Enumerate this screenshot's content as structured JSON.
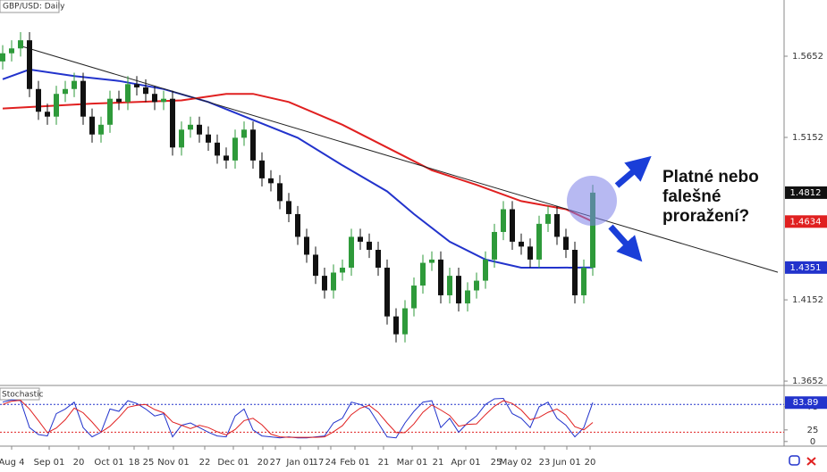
{
  "chart_data": [
    {
      "type": "candlestick",
      "title": "GBP/USD: Daily",
      "xlim": [
        -0.3,
        87.2
      ],
      "xticks": [
        {
          "value": 1,
          "label": "Aug 4"
        },
        {
          "value": 5.2,
          "label": "Sep 01"
        },
        {
          "value": 8.5,
          "label": "20"
        },
        {
          "value": 11.9,
          "label": "Oct 01"
        },
        {
          "value": 14.7,
          "label": "18"
        },
        {
          "value": 16.3,
          "label": "25"
        },
        {
          "value": 19.1,
          "label": "Nov 01"
        },
        {
          "value": 22.6,
          "label": "22"
        },
        {
          "value": 25.8,
          "label": "Dec 01"
        },
        {
          "value": 29.1,
          "label": "20"
        },
        {
          "value": 30.5,
          "label": "27"
        },
        {
          "value": 33.3,
          "label": "Jan 01"
        },
        {
          "value": 35.3,
          "label": "17"
        },
        {
          "value": 36.7,
          "label": "24"
        },
        {
          "value": 39.4,
          "label": "Feb 01"
        },
        {
          "value": 42.6,
          "label": "21"
        },
        {
          "value": 45.8,
          "label": "Mar 01"
        },
        {
          "value": 48.7,
          "label": "21"
        },
        {
          "value": 51.8,
          "label": "Apr 01"
        },
        {
          "value": 55.2,
          "label": "25"
        },
        {
          "value": 57.4,
          "label": "May 02"
        },
        {
          "value": 60.6,
          "label": "23"
        },
        {
          "value": 63.1,
          "label": "Jun 01"
        },
        {
          "value": 65.7,
          "label": "20"
        }
      ],
      "ylim": [
        1.3636,
        1.5998
      ],
      "yticks": [
        1.3652,
        1.4152,
        1.5152,
        1.5652
      ],
      "up_color": "#2e9a3a",
      "down_color": "#111111",
      "open": [
        1.562,
        1.567,
        1.57,
        1.575,
        1.545,
        1.531,
        1.528,
        1.542,
        1.545,
        1.55,
        1.528,
        1.517,
        1.523,
        1.539,
        1.537,
        1.548,
        1.546,
        1.542,
        1.537,
        1.539,
        1.509,
        1.52,
        1.523,
        1.517,
        1.512,
        1.504,
        1.501,
        1.515,
        1.52,
        1.501,
        1.49,
        1.487,
        1.476,
        1.468,
        1.454,
        1.443,
        1.43,
        1.421,
        1.432,
        1.435,
        1.454,
        1.451,
        1.446,
        1.435,
        1.405,
        1.394,
        1.41,
        1.424,
        1.438,
        1.44,
        1.418,
        1.43,
        1.413,
        1.421,
        1.427,
        1.44,
        1.457,
        1.471,
        1.451,
        1.448,
        1.44,
        1.462,
        1.468,
        1.454,
        1.446,
        1.418,
        1.435
      ],
      "high": [
        1.572,
        1.575,
        1.58,
        1.58,
        1.55,
        1.536,
        1.547,
        1.55,
        1.555,
        1.555,
        1.533,
        1.528,
        1.544,
        1.544,
        1.553,
        1.553,
        1.551,
        1.547,
        1.544,
        1.544,
        1.525,
        1.528,
        1.528,
        1.522,
        1.517,
        1.509,
        1.52,
        1.525,
        1.525,
        1.506,
        1.495,
        1.492,
        1.481,
        1.473,
        1.459,
        1.448,
        1.435,
        1.437,
        1.44,
        1.459,
        1.459,
        1.456,
        1.451,
        1.44,
        1.41,
        1.415,
        1.429,
        1.443,
        1.445,
        1.445,
        1.435,
        1.435,
        1.426,
        1.432,
        1.445,
        1.462,
        1.476,
        1.476,
        1.456,
        1.453,
        1.467,
        1.473,
        1.473,
        1.459,
        1.451,
        1.44,
        1.486
      ],
      "low": [
        1.557,
        1.562,
        1.565,
        1.54,
        1.526,
        1.523,
        1.523,
        1.537,
        1.54,
        1.523,
        1.512,
        1.512,
        1.518,
        1.532,
        1.532,
        1.541,
        1.537,
        1.532,
        1.532,
        1.504,
        1.504,
        1.515,
        1.512,
        1.507,
        1.499,
        1.496,
        1.496,
        1.51,
        1.496,
        1.485,
        1.482,
        1.471,
        1.463,
        1.449,
        1.438,
        1.425,
        1.416,
        1.416,
        1.427,
        1.43,
        1.446,
        1.441,
        1.43,
        1.4,
        1.389,
        1.389,
        1.405,
        1.419,
        1.433,
        1.413,
        1.413,
        1.408,
        1.408,
        1.416,
        1.422,
        1.435,
        1.452,
        1.446,
        1.443,
        1.435,
        1.435,
        1.457,
        1.449,
        1.441,
        1.413,
        1.413,
        1.43
      ],
      "close": [
        1.567,
        1.57,
        1.575,
        1.545,
        1.531,
        1.528,
        1.542,
        1.545,
        1.55,
        1.528,
        1.517,
        1.523,
        1.539,
        1.537,
        1.548,
        1.546,
        1.542,
        1.537,
        1.539,
        1.509,
        1.52,
        1.523,
        1.517,
        1.512,
        1.504,
        1.501,
        1.515,
        1.52,
        1.501,
        1.49,
        1.487,
        1.476,
        1.468,
        1.454,
        1.443,
        1.43,
        1.421,
        1.432,
        1.435,
        1.454,
        1.451,
        1.446,
        1.435,
        1.405,
        1.394,
        1.41,
        1.424,
        1.438,
        1.44,
        1.418,
        1.43,
        1.413,
        1.421,
        1.427,
        1.44,
        1.457,
        1.471,
        1.451,
        1.448,
        1.44,
        1.462,
        1.468,
        1.454,
        1.446,
        1.418,
        1.435,
        1.4812
      ],
      "lines": [
        {
          "color": "#2233cc",
          "x": [
            0,
            3,
            8,
            13,
            18,
            23,
            28,
            33,
            38,
            43,
            46,
            50,
            54,
            58,
            62,
            66
          ],
          "values": [
            1.551,
            1.557,
            1.553,
            1.55,
            1.545,
            1.537,
            1.526,
            1.515,
            1.498,
            1.482,
            1.468,
            1.451,
            1.44,
            1.435,
            1.435,
            1.4351
          ]
        },
        {
          "color": "#e02020",
          "x": [
            0,
            10,
            20,
            25,
            28,
            32,
            38,
            43,
            48,
            53,
            58,
            63,
            66
          ],
          "values": [
            1.533,
            1.536,
            1.538,
            1.542,
            1.542,
            1.537,
            1.523,
            1.509,
            1.495,
            1.486,
            1.476,
            1.471,
            1.4634
          ]
        }
      ],
      "trendline": {
        "color": "#222222",
        "x": [
          2.2,
          86.7
        ],
        "values": [
          1.5712,
          1.4322
        ]
      },
      "annotation": [
        "Platné nebo",
        "falešné",
        "proražení?"
      ]
    },
    {
      "type": "line",
      "title": "Stochastic",
      "xlim": [
        -0.3,
        87.2
      ],
      "ylim": [
        -10,
        119
      ],
      "yticks": [
        0,
        25,
        75
      ],
      "levels": [
        {
          "value": 80,
          "color": "#2233cc"
        },
        {
          "value": 20,
          "color": "#e02020"
        }
      ],
      "series": [
        {
          "color": "#2233cc",
          "values": [
            85,
            90,
            88,
            30,
            15,
            12,
            60,
            70,
            85,
            30,
            10,
            20,
            70,
            65,
            88,
            82,
            70,
            55,
            60,
            10,
            35,
            40,
            30,
            20,
            12,
            10,
            55,
            70,
            25,
            12,
            10,
            8,
            10,
            8,
            8,
            10,
            12,
            40,
            50,
            85,
            80,
            70,
            40,
            10,
            8,
            40,
            65,
            85,
            88,
            30,
            50,
            20,
            40,
            55,
            80,
            92,
            93,
            60,
            50,
            30,
            75,
            85,
            50,
            35,
            10,
            30,
            83.89
          ]
        },
        {
          "color": "#e02020",
          "values": [
            80,
            87,
            89,
            70,
            45,
            19,
            29,
            47,
            72,
            62,
            42,
            20,
            33,
            52,
            74,
            78,
            80,
            69,
            62,
            42,
            35,
            28,
            35,
            30,
            21,
            14,
            26,
            45,
            50,
            36,
            16,
            10,
            9,
            9,
            9,
            9,
            10,
            21,
            34,
            58,
            72,
            78,
            63,
            40,
            19,
            19,
            38,
            63,
            79,
            68,
            56,
            33,
            37,
            38,
            58,
            76,
            88,
            82,
            68,
            47,
            52,
            63,
            70,
            57,
            32,
            25,
            41
          ]
        }
      ]
    }
  ]
}
